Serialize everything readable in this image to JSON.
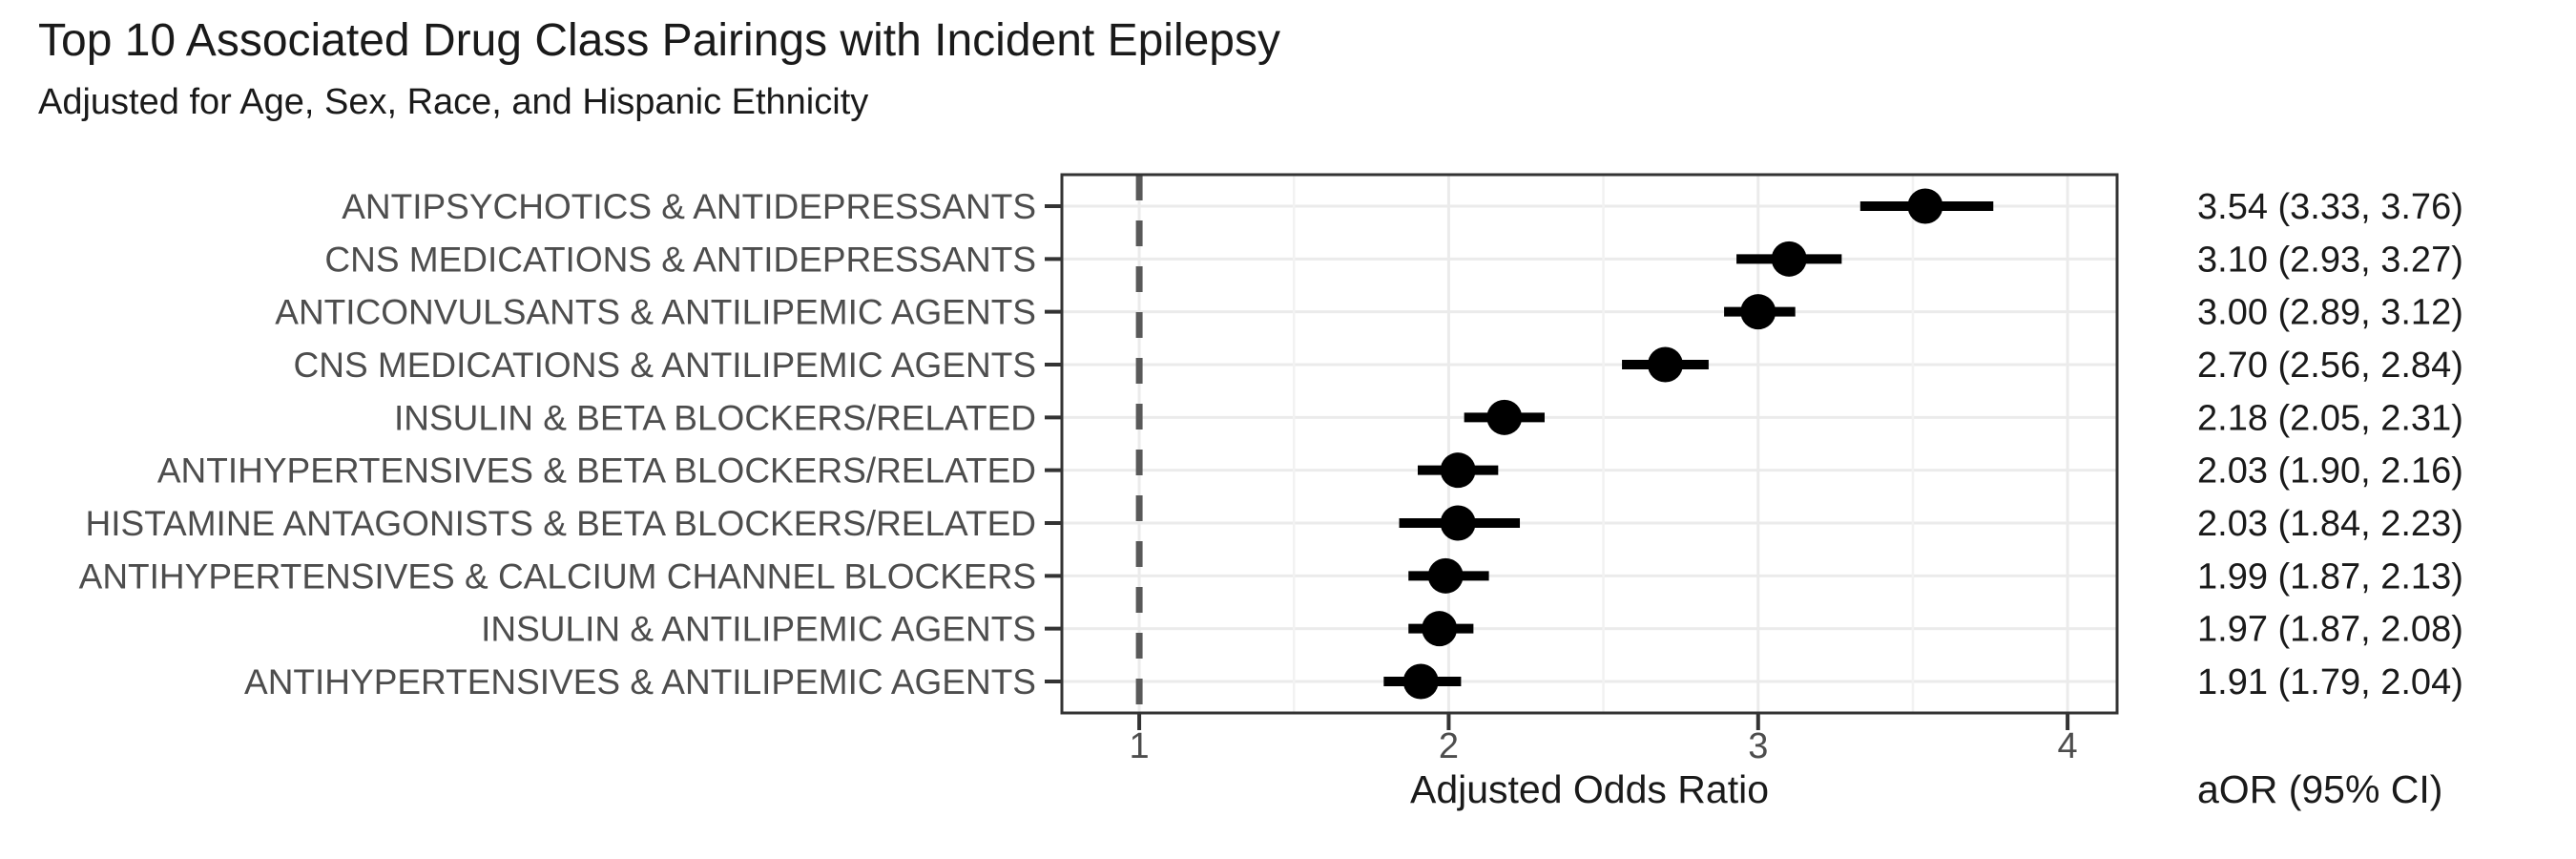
{
  "chart_data": {
    "type": "scatter",
    "variant": "forest_plot",
    "title": "Top 10 Associated Drug Class Pairings with Incident Epilepsy",
    "subtitle": "Adjusted for Age, Sex, Race, and Hispanic Ethnicity",
    "xlabel": "Adjusted Odds Ratio",
    "annotation_header": "aOR (95% CI)",
    "grid": true,
    "legend": false,
    "x_axis": {
      "lim": [
        0.75,
        4.16
      ],
      "ticks": [
        1,
        2,
        3,
        4
      ],
      "minor_ticks": [
        1.5,
        2.5,
        3.5
      ],
      "reference_line_x": 1
    },
    "rows": [
      {
        "label": "ANTIPSYCHOTICS & ANTIDEPRESSANTS",
        "aor": 3.54,
        "ci_low": 3.33,
        "ci_high": 3.76,
        "value_text": "3.54 (3.33, 3.76)"
      },
      {
        "label": "CNS MEDICATIONS & ANTIDEPRESSANTS",
        "aor": 3.1,
        "ci_low": 2.93,
        "ci_high": 3.27,
        "value_text": "3.10 (2.93, 3.27)"
      },
      {
        "label": "ANTICONVULSANTS & ANTILIPEMIC AGENTS",
        "aor": 3.0,
        "ci_low": 2.89,
        "ci_high": 3.12,
        "value_text": "3.00 (2.89, 3.12)"
      },
      {
        "label": "CNS MEDICATIONS & ANTILIPEMIC AGENTS",
        "aor": 2.7,
        "ci_low": 2.56,
        "ci_high": 2.84,
        "value_text": "2.70 (2.56, 2.84)"
      },
      {
        "label": "INSULIN & BETA BLOCKERS/RELATED",
        "aor": 2.18,
        "ci_low": 2.05,
        "ci_high": 2.31,
        "value_text": "2.18 (2.05, 2.31)"
      },
      {
        "label": "ANTIHYPERTENSIVES & BETA BLOCKERS/RELATED",
        "aor": 2.03,
        "ci_low": 1.9,
        "ci_high": 2.16,
        "value_text": "2.03 (1.90, 2.16)"
      },
      {
        "label": "HISTAMINE ANTAGONISTS & BETA BLOCKERS/RELATED",
        "aor": 2.03,
        "ci_low": 1.84,
        "ci_high": 2.23,
        "value_text": "2.03 (1.84, 2.23)"
      },
      {
        "label": "ANTIHYPERTENSIVES & CALCIUM CHANNEL BLOCKERS",
        "aor": 1.99,
        "ci_low": 1.87,
        "ci_high": 2.13,
        "value_text": "1.99 (1.87, 2.13)"
      },
      {
        "label": "INSULIN & ANTILIPEMIC AGENTS",
        "aor": 1.97,
        "ci_low": 1.87,
        "ci_high": 2.08,
        "value_text": "1.97 (1.87, 2.08)"
      },
      {
        "label": "ANTIHYPERTENSIVES & ANTILIPEMIC AGENTS",
        "aor": 1.91,
        "ci_low": 1.79,
        "ci_high": 2.04,
        "value_text": "1.91 (1.79, 2.04)"
      }
    ],
    "colors": {
      "point": "#000000",
      "error_bar": "#000000",
      "reference_line": "#595959",
      "grid_major": "#ebebeb",
      "grid_minor": "#f2f2f2",
      "panel_border": "#333333",
      "axis_tick": "#333333",
      "axis_text": "#4d4d4d",
      "text": "#1a1a1a",
      "background": "#ffffff"
    }
  }
}
